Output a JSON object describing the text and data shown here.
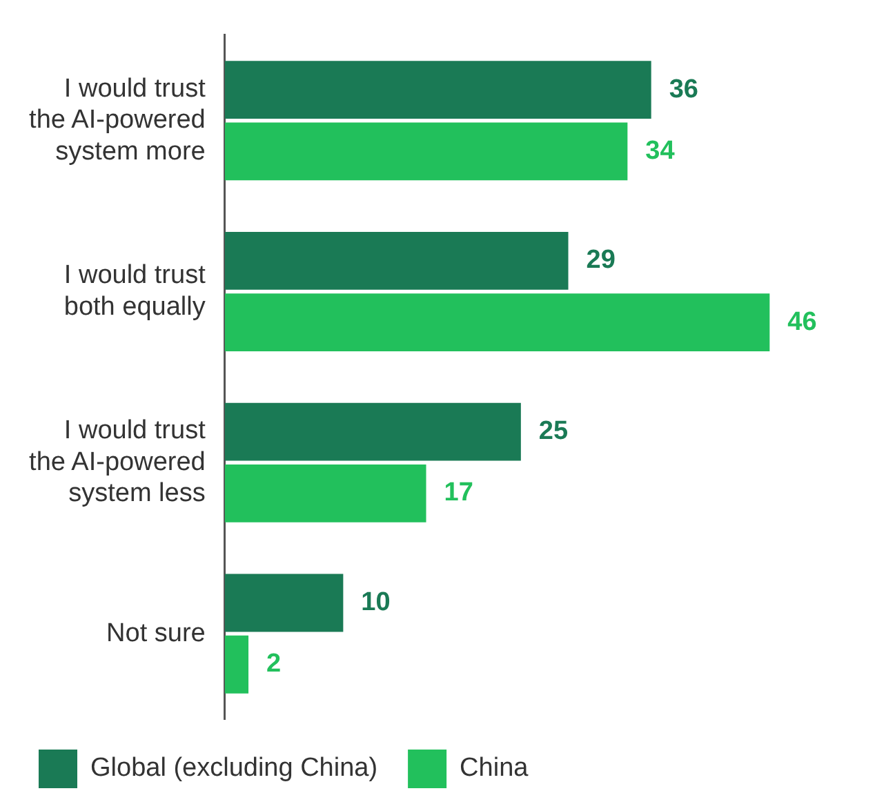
{
  "chart_data": {
    "type": "bar",
    "orientation": "horizontal",
    "categories": [
      "I would trust the AI-powered system more",
      "I would trust both equally",
      "I would trust the AI-powered system less",
      "Not sure"
    ],
    "series": [
      {
        "name": "Global (excluding China)",
        "color": "#1a7a55",
        "values": [
          36,
          29,
          25,
          10
        ]
      },
      {
        "name": "China",
        "color": "#22c05c",
        "values": [
          34,
          46,
          17,
          2
        ]
      }
    ],
    "data_labels": true,
    "legend": "bottom left"
  }
}
